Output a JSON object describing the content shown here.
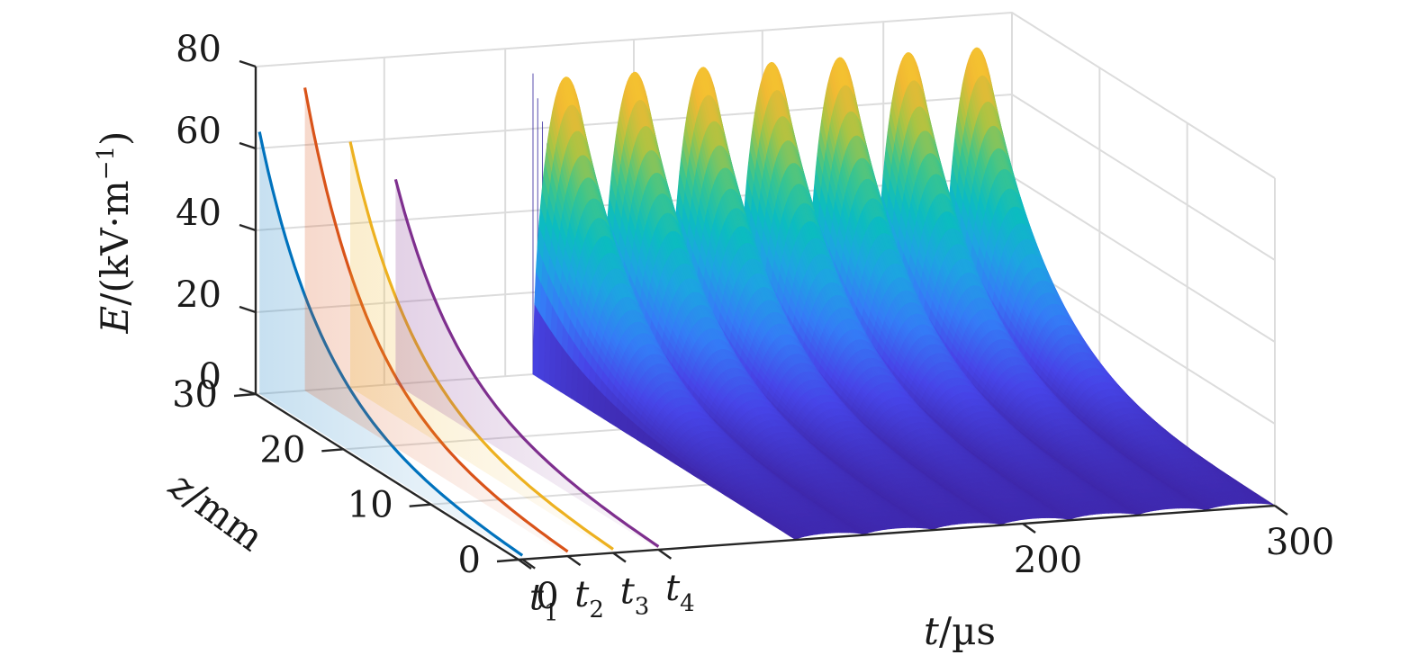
{
  "chart_data": {
    "type": "surface",
    "ylabel_text": {
      "var": "E",
      "unit_open": "/(kV·m",
      "unit_exp": "−1",
      "unit_close": ")"
    },
    "zlabel_text": {
      "var": "z",
      "unit": "/mm"
    },
    "tlabel_text": {
      "var": "t",
      "unit": "/µs"
    },
    "e_ticks": [
      "0",
      "20",
      "40",
      "60",
      "80"
    ],
    "z_ticks": [
      "0",
      "10",
      "20",
      "30"
    ],
    "t_ticks": [
      "0",
      "200",
      "300"
    ],
    "t_marker_labels": [
      {
        "var": "t",
        "sub": "1"
      },
      {
        "var": "t",
        "sub": "2"
      },
      {
        "var": "t",
        "sub": "3"
      },
      {
        "var": "t",
        "sub": "4"
      }
    ],
    "ranges": {
      "t": [
        0,
        300
      ],
      "z": [
        0,
        30
      ],
      "E": [
        0,
        80
      ]
    },
    "grid": true,
    "profiles": [
      {
        "name": "t1",
        "color": "#0072bd",
        "peak_E": 64,
        "t_pos": 0.0
      },
      {
        "name": "t2",
        "color": "#d95319",
        "peak_E": 74,
        "t_pos": 0.06
      },
      {
        "name": "t3",
        "color": "#edb120",
        "peak_E": 60,
        "t_pos": 0.12
      },
      {
        "name": "t4",
        "color": "#7e2f8e",
        "peak_E": 50,
        "t_pos": 0.18
      }
    ],
    "surface": {
      "t_range": [
        110,
        300
      ],
      "pulse_count": 7,
      "peak_E": 75,
      "colormap": [
        "#3e26a8",
        "#4745e8",
        "#357cf6",
        "#1ea4e2",
        "#0cbcc0",
        "#3ec58b",
        "#a8c444",
        "#f1b933",
        "#f9cf2c"
      ]
    }
  }
}
